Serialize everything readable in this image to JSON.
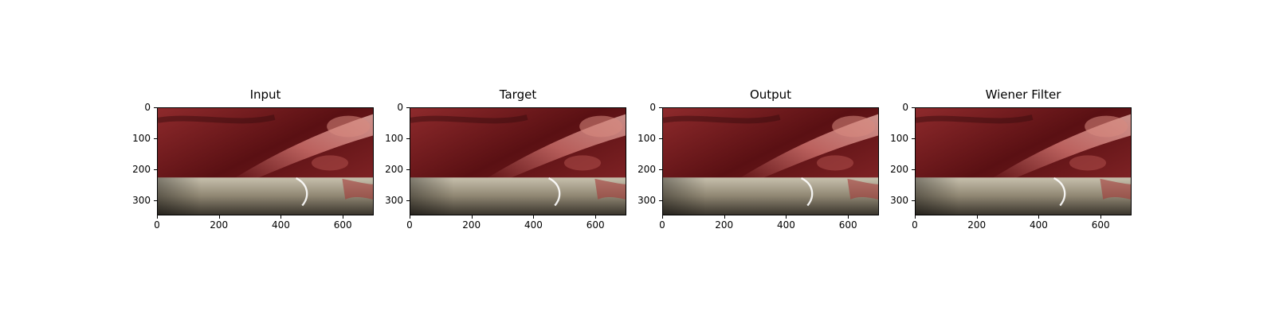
{
  "figure": {
    "panels": [
      {
        "id": "input",
        "title": "Input"
      },
      {
        "id": "target",
        "title": "Target"
      },
      {
        "id": "output",
        "title": "Output"
      },
      {
        "id": "wiener",
        "title": "Wiener Filter"
      }
    ],
    "y_ticks": [
      "0",
      "100",
      "200",
      "300"
    ],
    "x_ticks": [
      "0",
      "200",
      "400",
      "600"
    ],
    "image_extent": {
      "width": 700,
      "height": 350
    },
    "colors": {
      "tissue_dark": "#5a1013",
      "tissue_mid": "#8e2a2c",
      "tissue_light": "#c56a66",
      "instrument": "#8f8672",
      "instrument_light": "#c7c0ad",
      "frame": "#000000"
    }
  }
}
